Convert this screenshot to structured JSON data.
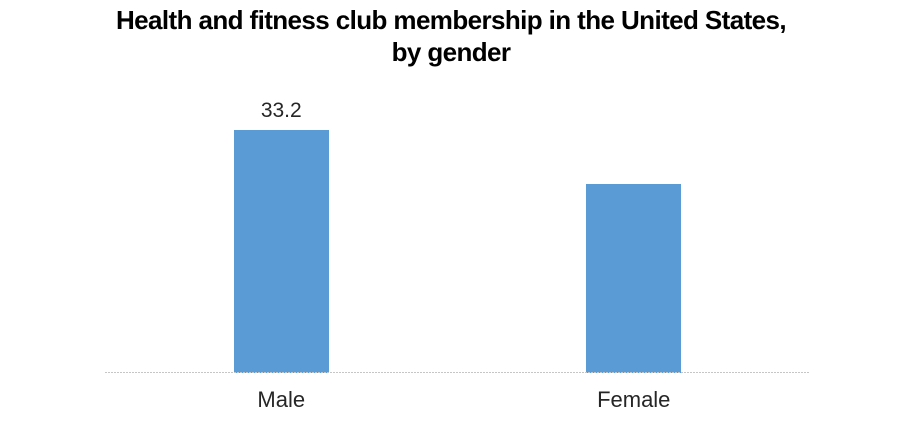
{
  "chart_data": {
    "type": "bar",
    "title": "Health and fitness club membership in the United States, by gender",
    "title_lines": [
      "Health and fitness club membership in the United States,",
      "by gender"
    ],
    "categories": [
      "Male",
      "Female"
    ],
    "values": [
      33.2,
      24.1
    ],
    "data_labels": [
      "33.2",
      ""
    ],
    "xlabel": "",
    "ylabel": "",
    "ylim": [
      0,
      35
    ],
    "grid": false,
    "legend": "none",
    "bar_color": "#5B9BD5",
    "title_color": "#000000",
    "tick_label_color": "#262626",
    "axis_line_color": "#c6c6c6",
    "background_color": "#ffffff"
  }
}
